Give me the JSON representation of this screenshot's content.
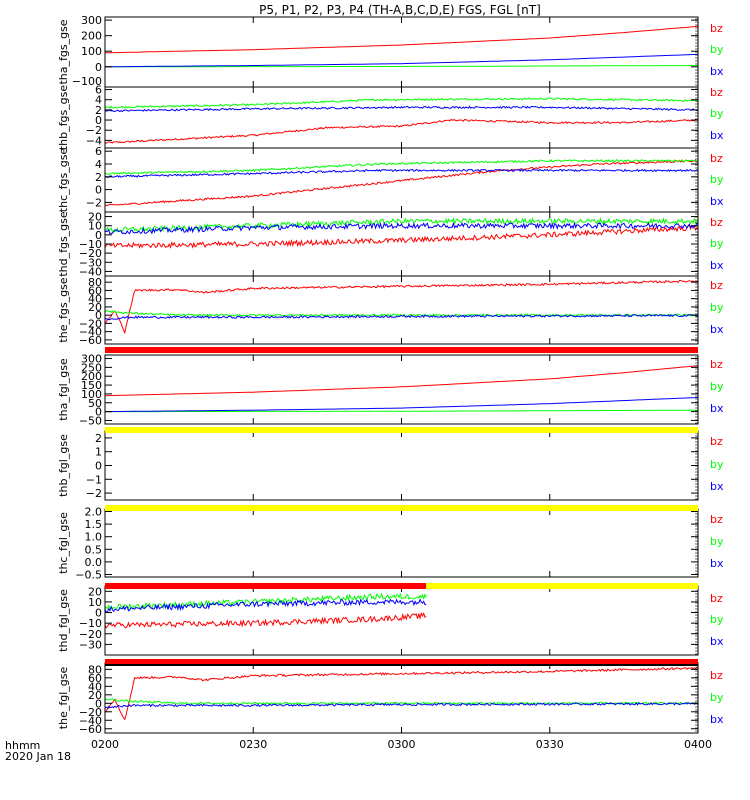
{
  "title": "P5, P1, P2, P3, P4 (TH-A,B,C,D,E) FGS, FGL [nT]",
  "xaxis": {
    "label_line1": "hhmm",
    "label_line2": "2020 Jan 18",
    "ticks": [
      "0200",
      "0230",
      "0300",
      "0330",
      "0400"
    ],
    "range_minutes": [
      0,
      120
    ],
    "tick_minutes": [
      0,
      30,
      60,
      90,
      120
    ]
  },
  "colors": {
    "bz": "#ff0000",
    "by": "#00ff00",
    "bx": "#0000ff",
    "bar_red": "#ff0000",
    "bar_yellow": "#ffff00",
    "bar_black": "#000000"
  },
  "chart_data": [
    {
      "type": "line",
      "ylabel": "tha_fgs_gse",
      "ylim": [
        -130,
        320
      ],
      "yticks": [
        300,
        200,
        100,
        0
      ],
      "ytick_labels": [
        "300",
        "200",
        "100",
        "0"
      ],
      "extra_tick_label": "−100",
      "legend": [
        "bz",
        "by",
        "bx"
      ],
      "series": [
        {
          "name": "bz",
          "x": [
            0,
            30,
            60,
            90,
            105,
            120
          ],
          "y": [
            90,
            110,
            140,
            185,
            220,
            260
          ]
        },
        {
          "name": "by",
          "x": [
            0,
            60,
            90,
            120
          ],
          "y": [
            0,
            2,
            5,
            8
          ]
        },
        {
          "name": "bx",
          "x": [
            0,
            30,
            60,
            90,
            120
          ],
          "y": [
            0,
            8,
            20,
            45,
            80
          ]
        }
      ]
    },
    {
      "type": "line",
      "ylabel": "thb_fgs_gse",
      "ylim": [
        -5.5,
        6.5
      ],
      "yticks": [
        6,
        4,
        2,
        0,
        -2,
        -4
      ],
      "ytick_labels": [
        "6",
        "4",
        "2",
        "0",
        "−2",
        "−4"
      ],
      "legend": [
        "bz",
        "by",
        "bx"
      ],
      "series": [
        {
          "name": "bz",
          "x": [
            0,
            30,
            45,
            60,
            70,
            90,
            105,
            120
          ],
          "y": [
            -4.5,
            -3,
            -1.5,
            -1.2,
            0,
            -0.5,
            -0.5,
            0
          ]
        },
        {
          "name": "by",
          "x": [
            0,
            30,
            55,
            90,
            120
          ],
          "y": [
            2.5,
            3,
            4,
            4.2,
            3.8
          ]
        },
        {
          "name": "bx",
          "x": [
            0,
            30,
            60,
            90,
            120
          ],
          "y": [
            1.8,
            2.2,
            2.5,
            2.5,
            2
          ]
        }
      ]
    },
    {
      "type": "line",
      "ylabel": "thc_fgs_gse",
      "ylim": [
        -3.5,
        6.5
      ],
      "yticks": [
        6,
        4,
        2,
        0,
        -2
      ],
      "ytick_labels": [
        "6",
        "4",
        "2",
        "0",
        "−2"
      ],
      "legend": [
        "bz",
        "by",
        "bx"
      ],
      "series": [
        {
          "name": "bz",
          "x": [
            0,
            30,
            55,
            80,
            100,
            120
          ],
          "y": [
            -2.5,
            -1,
            1,
            3,
            4,
            4.5
          ]
        },
        {
          "name": "by",
          "x": [
            0,
            30,
            55,
            90,
            120
          ],
          "y": [
            2.5,
            3,
            4,
            4.5,
            4.5
          ]
        },
        {
          "name": "bx",
          "x": [
            0,
            30,
            55,
            90,
            120
          ],
          "y": [
            2,
            2.5,
            3,
            3,
            3
          ]
        }
      ]
    },
    {
      "type": "line",
      "ylabel": "thd_fgs_gse",
      "ylim": [
        -45,
        25
      ],
      "yticks": [
        20,
        10,
        0,
        -10,
        -20,
        -30,
        -40
      ],
      "ytick_labels": [
        "20",
        "10",
        "0",
        "−10",
        "−20",
        "−30",
        "−40"
      ],
      "legend": [
        "bz",
        "by",
        "bx"
      ],
      "series": [
        {
          "name": "bz",
          "x": [
            0,
            30,
            60,
            90,
            120
          ],
          "y": [
            -12,
            -10,
            -6,
            0,
            8
          ]
        },
        {
          "name": "by",
          "x": [
            0,
            30,
            60,
            90,
            120
          ],
          "y": [
            5,
            10,
            15,
            15,
            15
          ]
        },
        {
          "name": "bx",
          "x": [
            0,
            30,
            60,
            90,
            120
          ],
          "y": [
            3,
            8,
            10,
            10,
            10
          ]
        }
      ]
    },
    {
      "type": "line",
      "ylabel": "the_fgs_gse",
      "ylim": [
        -70,
        95
      ],
      "yticks": [
        80,
        60,
        40,
        20,
        0,
        -20,
        -40,
        -60
      ],
      "ytick_labels": [
        "80",
        "60",
        "40",
        "20",
        "0",
        "−20",
        "−40",
        "−60"
      ],
      "legend": [
        "bz",
        "by",
        "bx"
      ],
      "series": [
        {
          "name": "bz",
          "x": [
            0,
            2,
            4,
            6,
            15,
            20,
            30,
            60,
            90,
            120
          ],
          "y": [
            -20,
            10,
            -40,
            60,
            62,
            55,
            65,
            70,
            75,
            83
          ]
        },
        {
          "name": "by",
          "x": [
            0,
            5,
            15,
            30,
            60,
            90,
            120
          ],
          "y": [
            10,
            5,
            0,
            0,
            0,
            0,
            0
          ]
        },
        {
          "name": "bx",
          "x": [
            0,
            5,
            15,
            30,
            60,
            90,
            120
          ],
          "y": [
            -10,
            -5,
            -5,
            -5,
            -3,
            -2,
            -1
          ]
        }
      ]
    },
    {
      "type": "line",
      "ylabel": "tha_fgl_gse",
      "ylim": [
        -70,
        320
      ],
      "yticks": [
        300,
        250,
        200,
        150,
        100,
        50,
        0,
        -50
      ],
      "ytick_labels": [
        "300",
        "250",
        "200",
        "150",
        "100",
        "50",
        "0",
        "−50"
      ],
      "legend": [
        "bz",
        "by",
        "bx"
      ],
      "series": [
        {
          "name": "bz",
          "x": [
            0,
            30,
            60,
            90,
            105,
            120
          ],
          "y": [
            90,
            110,
            140,
            185,
            220,
            260
          ]
        },
        {
          "name": "by",
          "x": [
            0,
            60,
            90,
            120
          ],
          "y": [
            0,
            2,
            5,
            8
          ]
        },
        {
          "name": "bx",
          "x": [
            0,
            30,
            60,
            90,
            120
          ],
          "y": [
            0,
            8,
            20,
            45,
            80
          ]
        }
      ]
    },
    {
      "type": "line",
      "ylabel": "thb_fgl_gse",
      "ylim": [
        -2.5,
        2.5
      ],
      "yticks": [
        2,
        1,
        0,
        -1,
        -2
      ],
      "ytick_labels": [
        "2",
        "1",
        "0",
        "−1",
        "−2"
      ],
      "legend": [
        "bz",
        "by",
        "bx"
      ],
      "series": []
    },
    {
      "type": "line",
      "ylabel": "thc_fgl_gse",
      "ylim": [
        -0.6,
        2.1
      ],
      "yticks": [
        2.0,
        1.5,
        1.0,
        0.5,
        0.0,
        -0.5
      ],
      "ytick_labels": [
        "2.0",
        "1.5",
        "1.0",
        "0.5",
        "0.0",
        "−0.5"
      ],
      "legend": [
        "bz",
        "by",
        "bx"
      ],
      "series": []
    },
    {
      "type": "line",
      "ylabel": "thd_fgl_gse",
      "ylim": [
        -40,
        25
      ],
      "yticks": [
        20,
        10,
        0,
        -10,
        -20,
        -30
      ],
      "ytick_labels": [
        "20",
        "10",
        "0",
        "−10",
        "−20",
        "−30"
      ],
      "legend": [
        "bz",
        "by",
        "bx"
      ],
      "series": [
        {
          "name": "bz",
          "x": [
            0,
            30,
            55,
            65
          ],
          "y": [
            -12,
            -10,
            -6,
            -3
          ]
        },
        {
          "name": "by",
          "x": [
            0,
            30,
            55,
            65
          ],
          "y": [
            5,
            10,
            15,
            15
          ]
        },
        {
          "name": "bx",
          "x": [
            0,
            30,
            55,
            65
          ],
          "y": [
            3,
            8,
            10,
            10
          ]
        }
      ]
    },
    {
      "type": "line",
      "ylabel": "the_fgl_gse",
      "ylim": [
        -70,
        95
      ],
      "yticks": [
        80,
        60,
        40,
        20,
        0,
        -20,
        -40,
        -60
      ],
      "ytick_labels": [
        "80",
        "60",
        "40",
        "20",
        "0",
        "−20",
        "−40",
        "−60"
      ],
      "legend": [
        "bz",
        "by",
        "bx"
      ],
      "series": [
        {
          "name": "bz",
          "x": [
            0,
            2,
            4,
            6,
            15,
            20,
            30,
            60,
            90,
            120
          ],
          "y": [
            -20,
            10,
            -40,
            60,
            62,
            55,
            65,
            70,
            75,
            83
          ]
        },
        {
          "name": "by",
          "x": [
            0,
            5,
            15,
            30,
            60,
            90,
            120
          ],
          "y": [
            10,
            5,
            0,
            0,
            0,
            0,
            0
          ]
        },
        {
          "name": "bx",
          "x": [
            0,
            5,
            15,
            30,
            60,
            90,
            120
          ],
          "y": [
            -10,
            -5,
            -5,
            -5,
            -3,
            -2,
            -1
          ]
        }
      ]
    }
  ],
  "status_bars": [
    {
      "after_panel": 4,
      "segments": [
        {
          "from": 0,
          "to": 120,
          "color": "red"
        }
      ]
    },
    {
      "after_panel": 5,
      "segments": [
        {
          "from": 0,
          "to": 120,
          "color": "yellow"
        }
      ]
    },
    {
      "after_panel": 6,
      "segments": [
        {
          "from": 0,
          "to": 120,
          "color": "yellow"
        }
      ]
    },
    {
      "after_panel": 7,
      "segments": [
        {
          "from": 0,
          "to": 65,
          "color": "red"
        },
        {
          "from": 65,
          "to": 120,
          "color": "yellow"
        }
      ]
    },
    {
      "after_panel": 8,
      "segments": [
        {
          "from": 0,
          "to": 120,
          "color": "red"
        }
      ]
    },
    {
      "after_panel": 9,
      "segments": [
        {
          "from": 0,
          "to": 120,
          "color": "black"
        }
      ]
    }
  ]
}
